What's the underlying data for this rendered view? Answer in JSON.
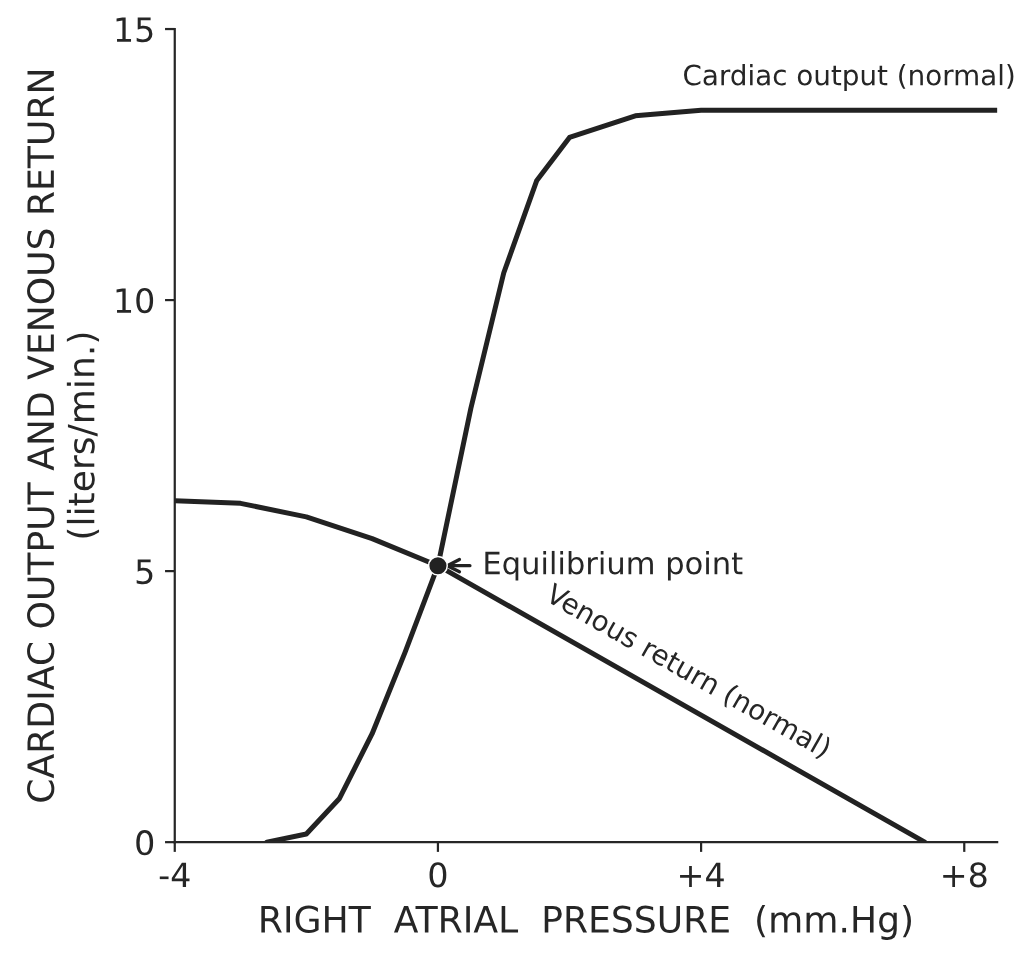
{
  "chart_data": {
    "type": "line",
    "xlabel": "RIGHT  ATRIAL  PRESSURE  (mm.Hg)",
    "ylabel": "CARDIAC OUTPUT AND VENOUS RETURN\n(liters/min.)",
    "xlim": [
      -4,
      8.5
    ],
    "ylim": [
      0,
      15
    ],
    "xticks": [
      {
        "value": -4,
        "label": "-4"
      },
      {
        "value": 0,
        "label": "0"
      },
      {
        "value": 4,
        "label": "+4"
      },
      {
        "value": 8,
        "label": "+8"
      }
    ],
    "yticks": [
      0,
      5,
      10,
      15
    ],
    "grid": false,
    "legend": false,
    "series": [
      {
        "name": "Cardiac output (normal)",
        "color": "#222222",
        "x": [
          -2.6,
          -2,
          -1.5,
          -1,
          -0.5,
          0,
          0.5,
          1,
          1.5,
          2,
          3,
          4,
          8.5
        ],
        "values": [
          0,
          0.15,
          0.8,
          2.0,
          3.5,
          5.1,
          8.0,
          10.5,
          12.2,
          13.0,
          13.4,
          13.5,
          13.5
        ]
      },
      {
        "name": "Venous return (normal)",
        "color": "#222222",
        "x": [
          -4,
          -3,
          -2,
          -1,
          0,
          7.4
        ],
        "values": [
          6.3,
          6.25,
          6.0,
          5.6,
          5.1,
          0
        ]
      },
      {
        "type": "scatter",
        "color": "#222222",
        "marker": "circle",
        "x": [
          0
        ],
        "values": [
          5.1
        ]
      }
    ],
    "annotations": [
      {
        "text": "Equilibrium point",
        "x": 0,
        "y": 5.1
      }
    ]
  }
}
